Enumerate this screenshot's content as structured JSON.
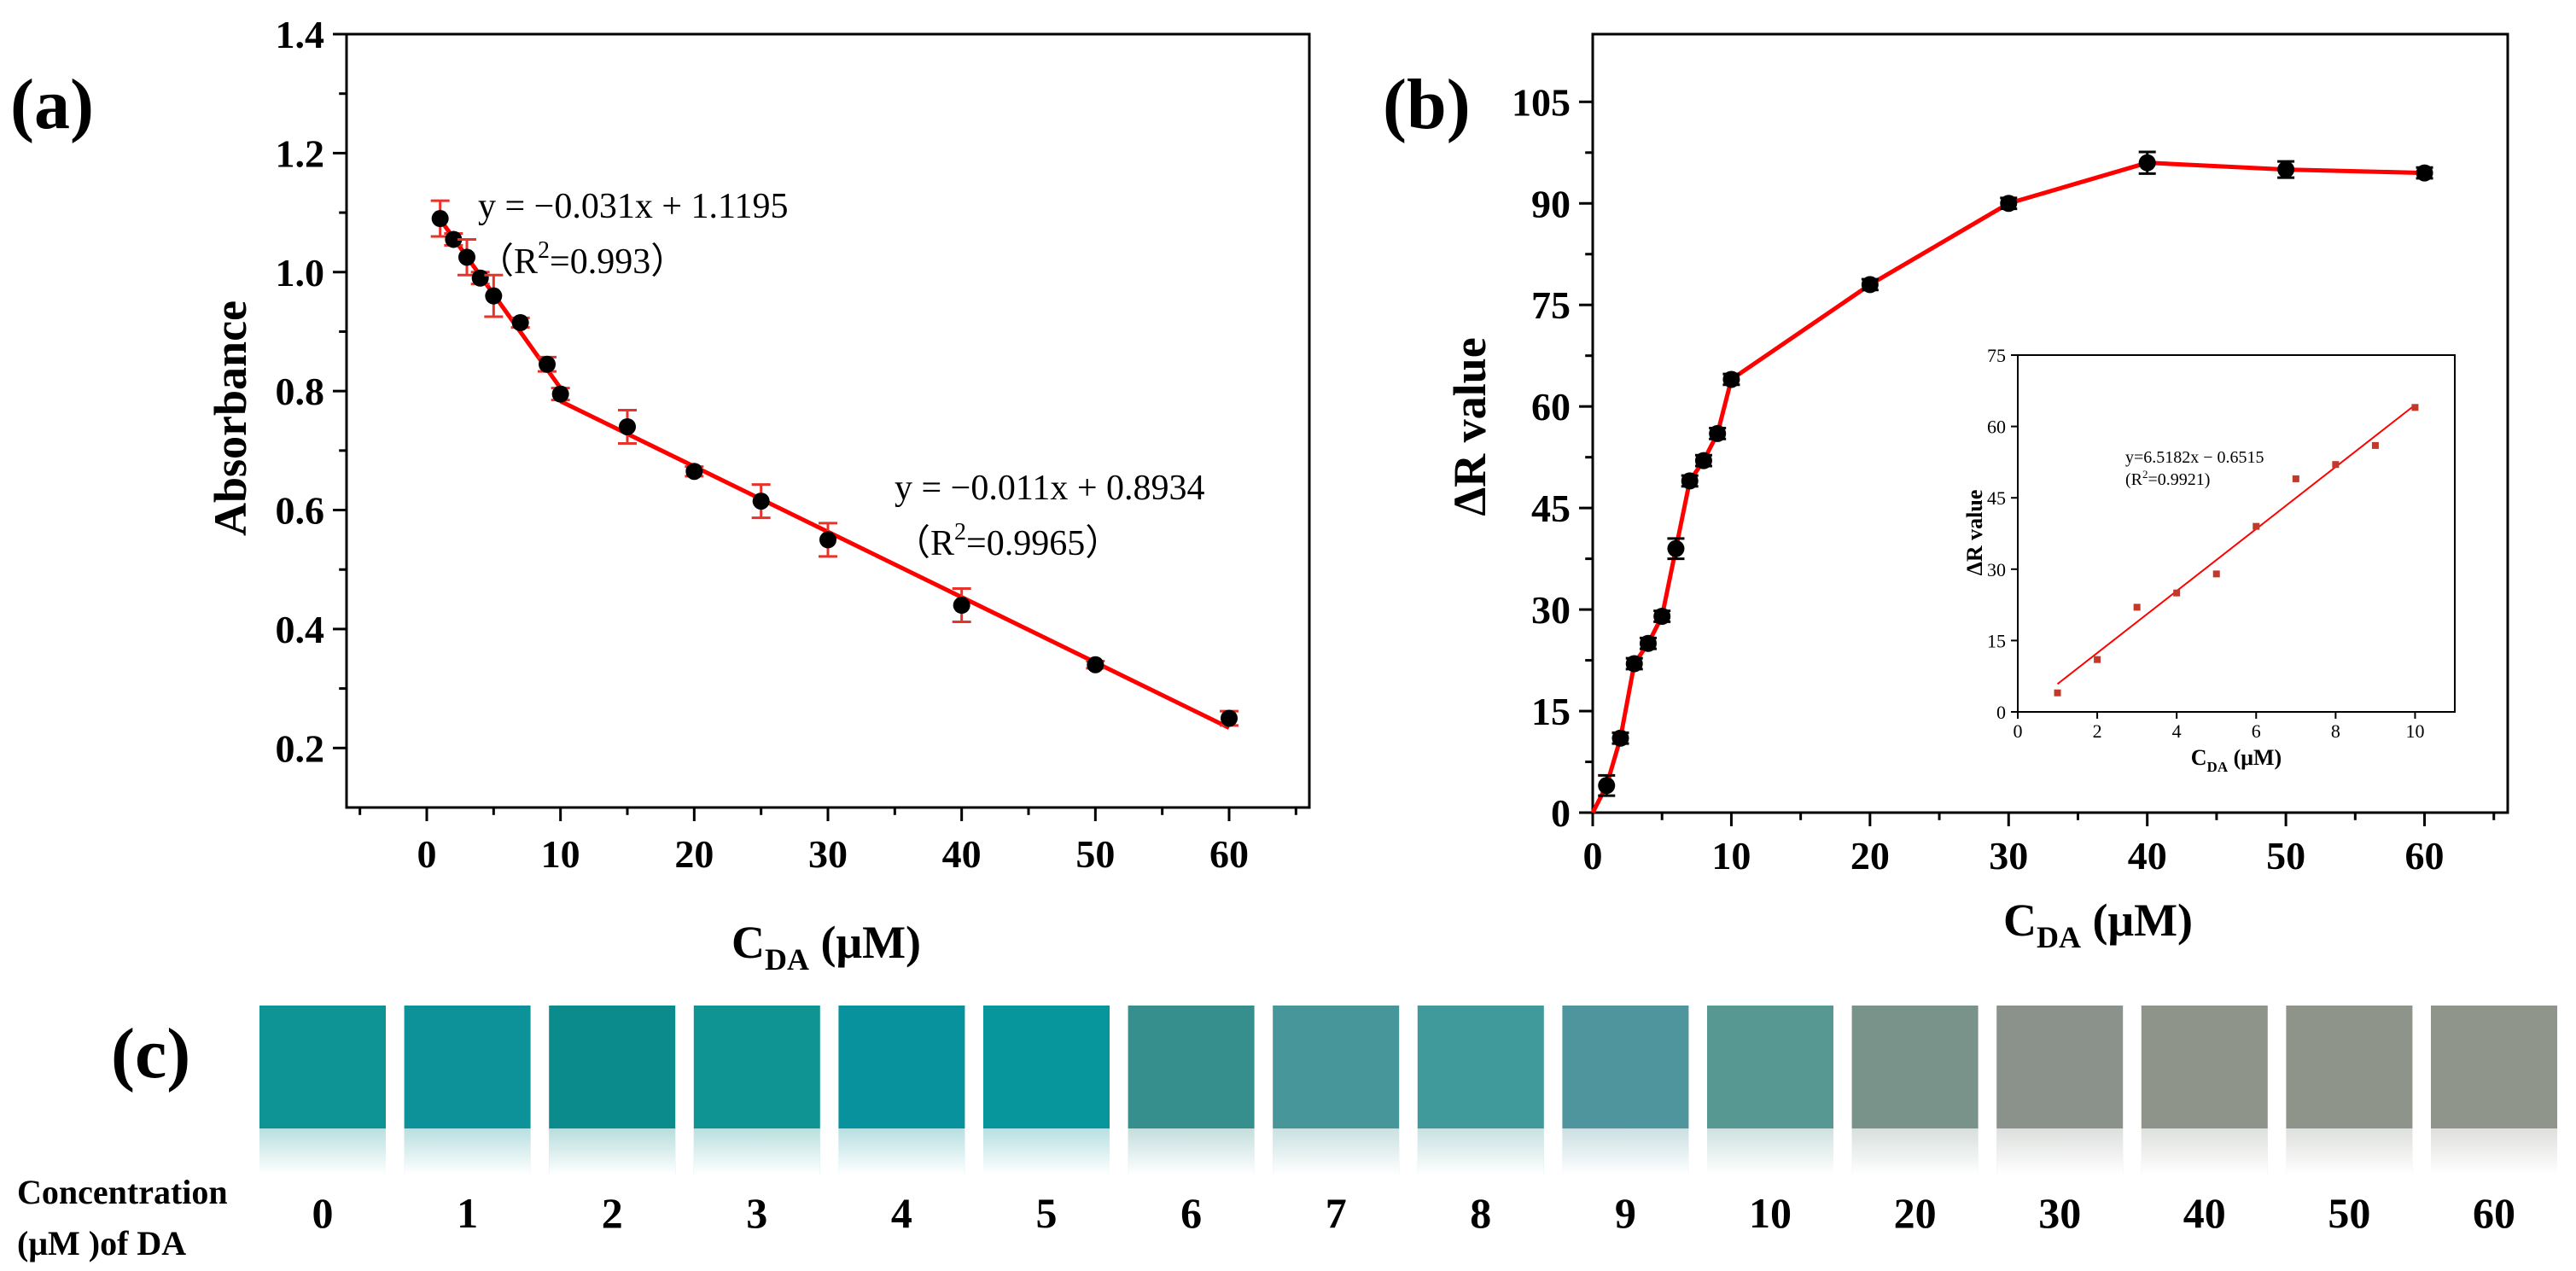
{
  "panel_labels": {
    "a": "(a)",
    "b": "(b)",
    "c": "(c)"
  },
  "colors": {
    "fit_line": "#ff0000",
    "point": "#000000",
    "error_bar": "#e8332a",
    "inset_point": "#c0392b"
  },
  "chart_data": [
    {
      "type": "scatter",
      "panel": "a",
      "xlabel_main": "C",
      "xlabel_sub": "DA",
      "xlabel_unit": " (μM)",
      "ylabel": "Absorbance",
      "xlim": [
        -6,
        66
      ],
      "ylim": [
        0.1,
        1.4
      ],
      "xticks": [
        0,
        10,
        20,
        30,
        40,
        50,
        60
      ],
      "yticks": [
        0.2,
        0.4,
        0.6,
        0.8,
        1.0,
        1.2,
        1.4
      ],
      "ytick_labels": [
        "0.2",
        "0.4",
        "0.6",
        "0.8",
        "1.0",
        "1.2",
        "1.4"
      ],
      "points": [
        {
          "x": 1,
          "y": 1.09,
          "err": 0.03
        },
        {
          "x": 2,
          "y": 1.055,
          "err": 0.01
        },
        {
          "x": 3,
          "y": 1.025,
          "err": 0.03
        },
        {
          "x": 4,
          "y": 0.99,
          "err": 0.01
        },
        {
          "x": 5,
          "y": 0.96,
          "err": 0.035
        },
        {
          "x": 7,
          "y": 0.915,
          "err": 0.008
        },
        {
          "x": 9,
          "y": 0.845,
          "err": 0.012
        },
        {
          "x": 10,
          "y": 0.795,
          "err": 0.01
        },
        {
          "x": 15,
          "y": 0.74,
          "err": 0.028
        },
        {
          "x": 20,
          "y": 0.665,
          "err": 0.008
        },
        {
          "x": 25,
          "y": 0.615,
          "err": 0.028
        },
        {
          "x": 30,
          "y": 0.55,
          "err": 0.028
        },
        {
          "x": 40,
          "y": 0.44,
          "err": 0.028
        },
        {
          "x": 50,
          "y": 0.34,
          "err": 0.006
        },
        {
          "x": 60,
          "y": 0.25,
          "err": 0.012
        }
      ],
      "fit_segments": [
        {
          "x": [
            0.8,
            10
          ],
          "y": [
            1.095,
            0.805
          ]
        },
        {
          "x": [
            10,
            60
          ],
          "y": [
            0.783,
            0.234
          ]
        }
      ],
      "annotations": [
        {
          "line1": "y = −0.031x + 1.1195",
          "r2_prefix": "（R",
          "r2_sup": "2",
          "r2_value": "=0.993）"
        },
        {
          "line1": "y = −0.011x + 0.8934",
          "r2_prefix": "（R",
          "r2_sup": "2",
          "r2_value": "=0.9965）"
        }
      ]
    },
    {
      "type": "line",
      "panel": "b",
      "xlabel_main": "C",
      "xlabel_sub": "DA",
      "xlabel_unit": " (μM)",
      "ylabel": "ΔR value",
      "xlim": [
        0,
        66
      ],
      "ylim": [
        0,
        115
      ],
      "xticks": [
        0,
        10,
        20,
        30,
        40,
        50,
        60
      ],
      "yticks": [
        0,
        15,
        30,
        45,
        60,
        75,
        90,
        105
      ],
      "points": [
        {
          "x": 1,
          "y": 4,
          "err": 1.5
        },
        {
          "x": 2,
          "y": 11,
          "err": 0.8
        },
        {
          "x": 3,
          "y": 22,
          "err": 0.8
        },
        {
          "x": 4,
          "y": 25,
          "err": 0.8
        },
        {
          "x": 5,
          "y": 29,
          "err": 0.8
        },
        {
          "x": 6,
          "y": 39,
          "err": 1.5
        },
        {
          "x": 7,
          "y": 49,
          "err": 0.8
        },
        {
          "x": 8,
          "y": 52,
          "err": 0.8
        },
        {
          "x": 9,
          "y": 56,
          "err": 0.8
        },
        {
          "x": 10,
          "y": 64,
          "err": 0.8
        },
        {
          "x": 20,
          "y": 78,
          "err": 0.8
        },
        {
          "x": 30,
          "y": 90,
          "err": 0.8
        },
        {
          "x": 40,
          "y": 96,
          "err": 1.6
        },
        {
          "x": 50,
          "y": 95,
          "err": 1.2
        },
        {
          "x": 60,
          "y": 94.5,
          "err": 0.8
        }
      ],
      "line_start": {
        "x": 0,
        "y": 0
      }
    },
    {
      "type": "scatter",
      "panel": "b-inset",
      "xlabel_main": "C",
      "xlabel_sub": "DA",
      "xlabel_unit": " (μM)",
      "ylabel": "ΔR value",
      "xlim": [
        0,
        11
      ],
      "ylim": [
        0,
        75
      ],
      "xticks": [
        0,
        2,
        4,
        6,
        8,
        10
      ],
      "yticks": [
        0,
        15,
        30,
        45,
        60,
        75
      ],
      "points": [
        {
          "x": 1,
          "y": 4
        },
        {
          "x": 2,
          "y": 11
        },
        {
          "x": 3,
          "y": 22
        },
        {
          "x": 4,
          "y": 25
        },
        {
          "x": 5,
          "y": 29
        },
        {
          "x": 6,
          "y": 39
        },
        {
          "x": 7,
          "y": 49
        },
        {
          "x": 8,
          "y": 52
        },
        {
          "x": 9,
          "y": 56
        },
        {
          "x": 10,
          "y": 64
        }
      ],
      "fit": {
        "x": [
          1,
          10
        ],
        "y": [
          5.87,
          64.53
        ]
      },
      "annotation": {
        "line1": "y=6.5182x − 0.6515",
        "r2_prefix": "(R",
        "r2_sup": "2",
        "r2_value": "=0.9921)"
      }
    }
  ],
  "swatches": {
    "row_label_line1": "Concentration",
    "row_label_line2": "(μM )of DA",
    "items": [
      {
        "label": "0",
        "color": "#0f9495"
      },
      {
        "label": "1",
        "color": "#0d9299"
      },
      {
        "label": "2",
        "color": "#0b8b8c"
      },
      {
        "label": "3",
        "color": "#0f9493"
      },
      {
        "label": "4",
        "color": "#08929d"
      },
      {
        "label": "5",
        "color": "#08969d"
      },
      {
        "label": "6",
        "color": "#368f8c"
      },
      {
        "label": "7",
        "color": "#46969a"
      },
      {
        "label": "8",
        "color": "#40999a"
      },
      {
        "label": "9",
        "color": "#4e959e"
      },
      {
        "label": "10",
        "color": "#589893"
      },
      {
        "label": "20",
        "color": "#7a938a"
      },
      {
        "label": "30",
        "color": "#8a928b"
      },
      {
        "label": "40",
        "color": "#8e948a"
      },
      {
        "label": "50",
        "color": "#8f948a"
      },
      {
        "label": "60",
        "color": "#90958c"
      }
    ]
  }
}
